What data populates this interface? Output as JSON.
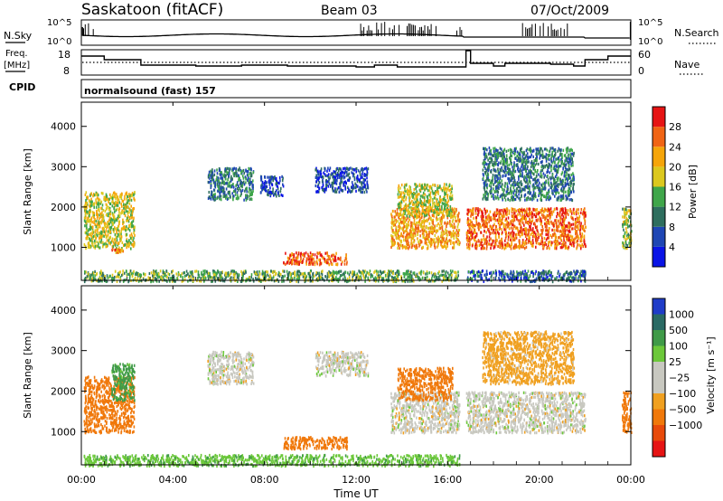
{
  "header": {
    "station": "Saskatoon (fitACF)",
    "beam": "Beam 03",
    "date": "07/Oct/2009"
  },
  "sky_panel": {
    "left_label": "N.Sky",
    "right_label": "N.Search",
    "left_ticks": [
      "10^5",
      "10^0"
    ],
    "right_ticks": [
      "10^5",
      "10^0"
    ]
  },
  "freq_panel": {
    "left_label_1": "Freq.",
    "left_label_2": "[MHz]",
    "right_label": "Nave",
    "left_ticks": [
      "18",
      "8"
    ],
    "right_ticks": [
      "60",
      "0"
    ]
  },
  "cpid": {
    "label": "CPID",
    "mode": "normalsound (fast) 157"
  },
  "time_axis": {
    "label": "Time UT",
    "ticks": [
      "00:00",
      "04:00",
      "08:00",
      "12:00",
      "16:00",
      "20:00",
      "00:00"
    ]
  },
  "colors": {
    "power_scale": [
      "#0a14e6",
      "#1e46b4",
      "#2e6e5e",
      "#3fa64a",
      "#dcc81e",
      "#f5a50a",
      "#f06414",
      "#e61414"
    ],
    "velocity_scale": [
      "#1f3cc8",
      "#2a6a64",
      "#3f9a48",
      "#6cc83a",
      "#c8c8c0",
      "#c8c8c0",
      "#f0a020",
      "#f0780a",
      "#e84a0a",
      "#e61414"
    ]
  },
  "chart_data": [
    {
      "type": "heatmap",
      "panel": "power",
      "ylabel": "Slant Range [km]",
      "ylim": [
        180,
        4600
      ],
      "yticks": [
        "1000",
        "2000",
        "3000",
        "4000"
      ],
      "xlabel": "Time UT",
      "xlim": [
        0,
        24
      ],
      "colorbar": {
        "label": "Power [dB]",
        "unit": "dB",
        "range": [
          0,
          32
        ],
        "ticks": [
          "4",
          "8",
          "12",
          "16",
          "20",
          "24",
          "28"
        ]
      },
      "series": [
        {
          "t": [
            0.1,
            2.3
          ],
          "range": [
            1000,
            2400
          ],
          "value": 18
        },
        {
          "t": [
            1.3,
            1.8
          ],
          "range": [
            900,
            1000
          ],
          "value": 24
        },
        {
          "t": [
            5.5,
            7.5
          ],
          "range": [
            2200,
            3000
          ],
          "value": 10
        },
        {
          "t": [
            7.8,
            8.8
          ],
          "range": [
            2300,
            2800
          ],
          "value": 6
        },
        {
          "t": [
            8.8,
            11.6
          ],
          "range": [
            600,
            900
          ],
          "value": 26
        },
        {
          "t": [
            10.2,
            12.5
          ],
          "range": [
            2400,
            3000
          ],
          "value": 6
        },
        {
          "t": [
            13.5,
            16.5
          ],
          "range": [
            1000,
            2000
          ],
          "value": 22
        },
        {
          "t": [
            13.8,
            16.2
          ],
          "range": [
            1800,
            2600
          ],
          "value": 18
        },
        {
          "t": [
            16.8,
            22.0
          ],
          "range": [
            1000,
            2000
          ],
          "value": 26
        },
        {
          "t": [
            17.5,
            21.5
          ],
          "range": [
            2200,
            3500
          ],
          "value": 10
        },
        {
          "t": [
            0.1,
            16.5
          ],
          "range": [
            180,
            450
          ],
          "value": 14
        },
        {
          "t": [
            16.8,
            22.0
          ],
          "range": [
            180,
            450
          ],
          "value": 8
        },
        {
          "t": [
            23.6,
            24.0
          ],
          "range": [
            1000,
            2000
          ],
          "value": 16
        }
      ]
    },
    {
      "type": "heatmap",
      "panel": "velocity",
      "ylabel": "Slant Range [km]",
      "ylim": [
        180,
        4600
      ],
      "yticks": [
        "1000",
        "2000",
        "3000",
        "4000"
      ],
      "xlabel": "Time UT",
      "xlim": [
        0,
        24
      ],
      "colorbar": {
        "label": "Velocity [m s⁻¹]",
        "ticks": [
          "1000",
          "500",
          "100",
          "25",
          "−25",
          "−100",
          "−500",
          "−1000"
        ]
      },
      "series": [
        {
          "t": [
            0.1,
            2.3
          ],
          "range": [
            1000,
            2400
          ],
          "value": -150
        },
        {
          "t": [
            1.3,
            2.3
          ],
          "range": [
            1800,
            2700
          ],
          "value": 120
        },
        {
          "t": [
            5.5,
            7.5
          ],
          "range": [
            2200,
            3000
          ],
          "value": 0
        },
        {
          "t": [
            8.8,
            11.6
          ],
          "range": [
            600,
            900
          ],
          "value": -200
        },
        {
          "t": [
            10.2,
            12.5
          ],
          "range": [
            2400,
            3000
          ],
          "value": 0
        },
        {
          "t": [
            13.5,
            16.5
          ],
          "range": [
            1000,
            2000
          ],
          "value": 0
        },
        {
          "t": [
            13.8,
            16.2
          ],
          "range": [
            1800,
            2600
          ],
          "value": -150
        },
        {
          "t": [
            16.8,
            22.0
          ],
          "range": [
            1000,
            2000
          ],
          "value": 0
        },
        {
          "t": [
            17.5,
            21.5
          ],
          "range": [
            2200,
            3500
          ],
          "value": -50
        },
        {
          "t": [
            0.1,
            16.5
          ],
          "range": [
            180,
            450
          ],
          "value": 80
        },
        {
          "t": [
            23.6,
            24.0
          ],
          "range": [
            1000,
            2000
          ],
          "value": -200
        }
      ]
    }
  ]
}
